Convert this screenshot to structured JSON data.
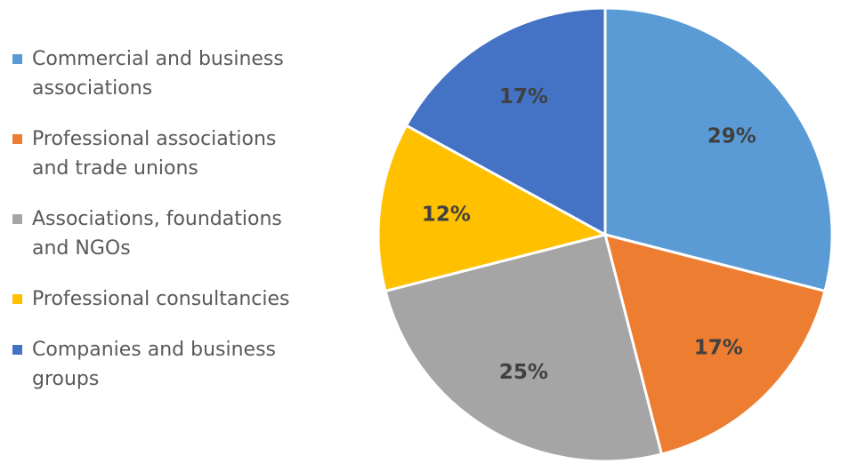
{
  "chart_data": {
    "type": "pie",
    "categories": [
      "Commercial and business associations",
      "Professional associations and trade unions",
      "Associations, foundations and NGOs",
      "Professional consultancies",
      "Companies and business groups"
    ],
    "values": [
      29,
      17,
      25,
      12,
      17
    ],
    "value_labels": [
      "29%",
      "17%",
      "25%",
      "12%",
      "17%"
    ],
    "colors": [
      "#5B9BD5",
      "#ED7D31",
      "#A5A5A5",
      "#FFC000",
      "#4472C4"
    ],
    "legend_position": "left",
    "start_angle_deg": 0,
    "direction": "clockwise"
  }
}
